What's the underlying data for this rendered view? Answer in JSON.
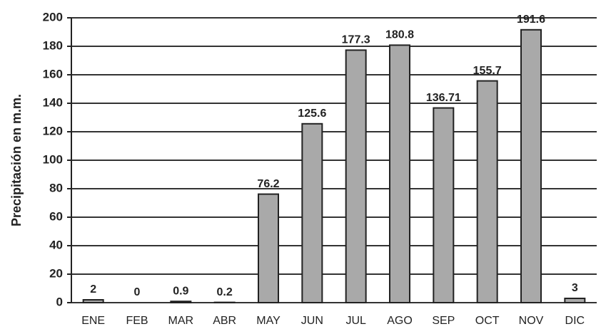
{
  "chart_data": {
    "type": "bar",
    "y_label": "Precipitación en m.m.",
    "categories": [
      "ENE",
      "FEB",
      "MAR",
      "ABR",
      "MAY",
      "JUN",
      "JUL",
      "AGO",
      "SEP",
      "OCT",
      "NOV",
      "DIC"
    ],
    "values": [
      2,
      0,
      0.9,
      0.2,
      76.2,
      125.6,
      177.3,
      180.8,
      136.71,
      155.7,
      191.6,
      3
    ],
    "color": "#a9a9a9",
    "ylim": [
      0,
      200
    ],
    "yticks": [
      0,
      20,
      40,
      60,
      80,
      100,
      120,
      140,
      160,
      180,
      200
    ],
    "grid": true
  }
}
